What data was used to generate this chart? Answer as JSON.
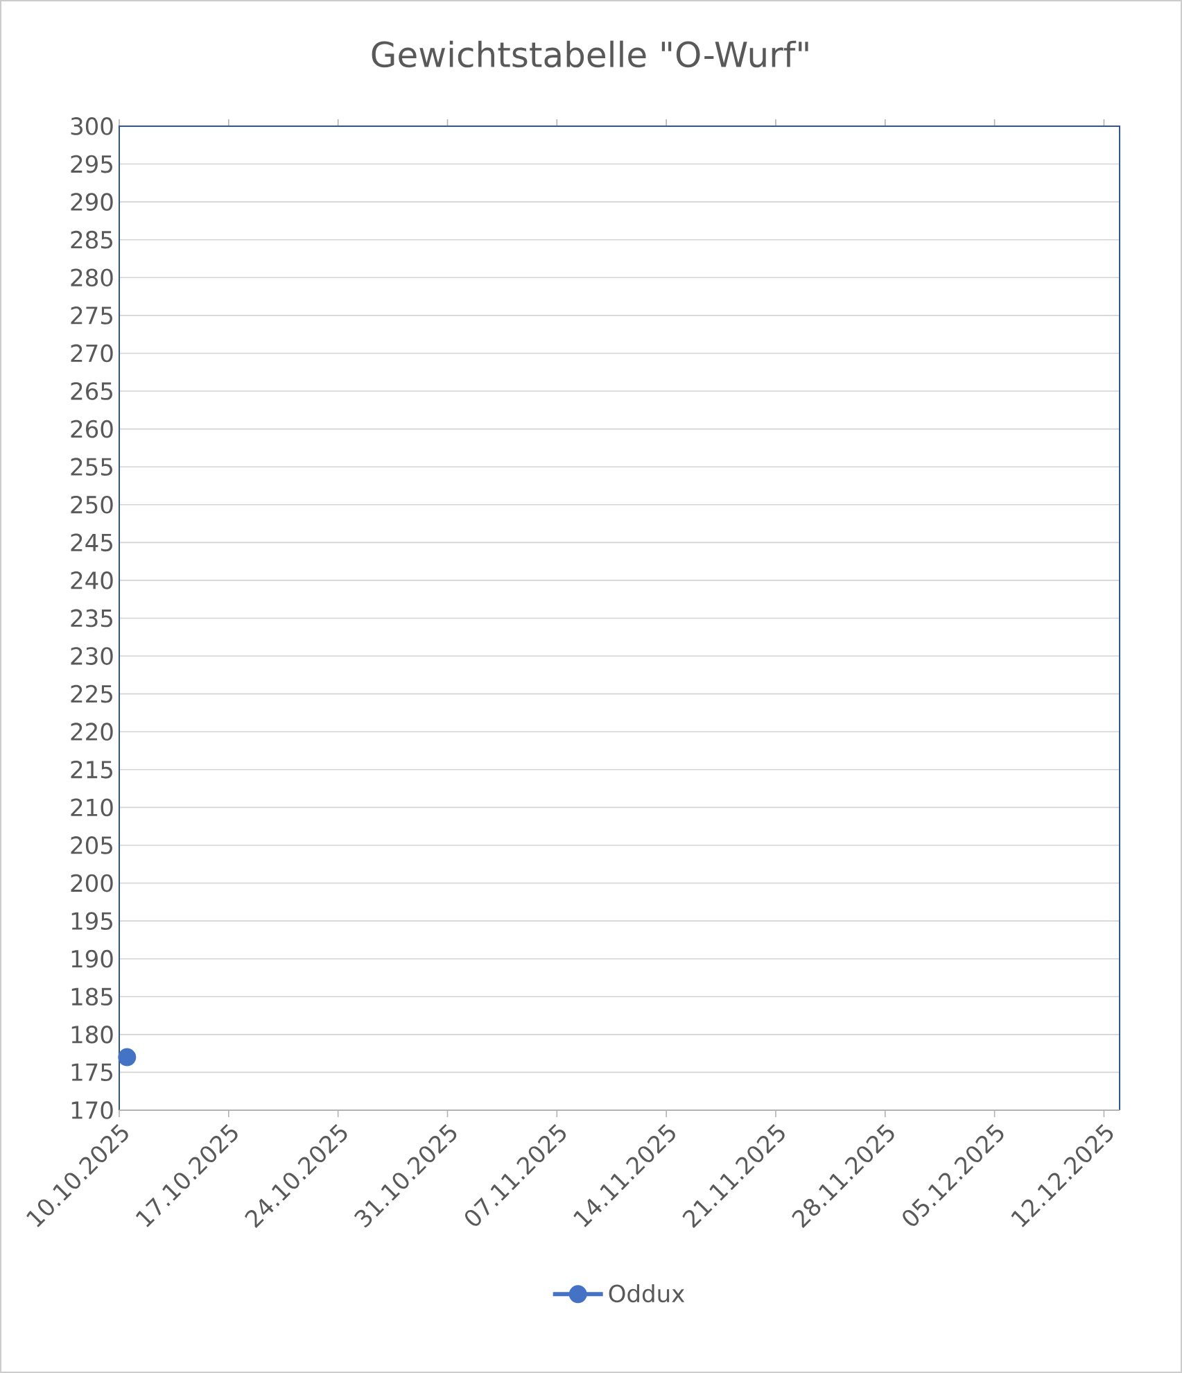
{
  "chart_data": {
    "type": "line",
    "title": "Gewichtstabelle \"O-Wurf\"",
    "x": [
      "2025-10-10T12:00"
    ],
    "series": [
      {
        "name": "Oddux",
        "color": "#4472c4",
        "values": [
          177
        ]
      }
    ],
    "xlim": [
      "2025-10-10",
      "2025-12-13"
    ],
    "xticks": [
      {
        "value": "2025-10-10",
        "label": "10.10.2025"
      },
      {
        "value": "2025-10-17",
        "label": "17.10.2025"
      },
      {
        "value": "2025-10-24",
        "label": "24.10.2025"
      },
      {
        "value": "2025-10-31",
        "label": "31.10.2025"
      },
      {
        "value": "2025-11-07",
        "label": "07.11.2025"
      },
      {
        "value": "2025-11-14",
        "label": "14.11.2025"
      },
      {
        "value": "2025-11-21",
        "label": "21.11.2025"
      },
      {
        "value": "2025-11-28",
        "label": "28.11.2025"
      },
      {
        "value": "2025-12-05",
        "label": "05.12.2025"
      },
      {
        "value": "2025-12-12",
        "label": "12.12.2025"
      }
    ],
    "ylim": [
      170,
      300
    ],
    "yticks": [
      170,
      175,
      180,
      185,
      190,
      195,
      200,
      205,
      210,
      215,
      220,
      225,
      230,
      235,
      240,
      245,
      250,
      255,
      260,
      265,
      270,
      275,
      280,
      285,
      290,
      295,
      300
    ],
    "grid": "y",
    "legend": "bottom",
    "marker": "circle",
    "line_style": "solid"
  }
}
